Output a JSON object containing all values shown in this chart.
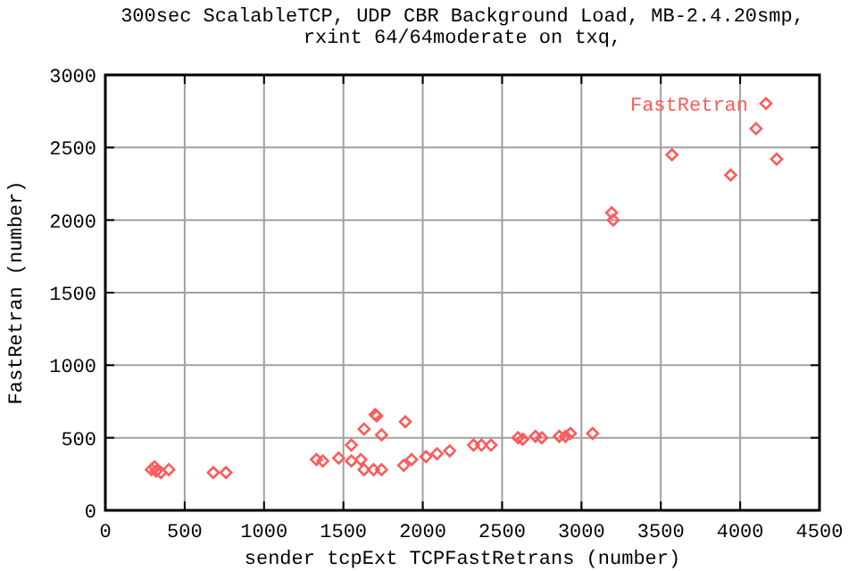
{
  "chart_data": {
    "type": "scatter",
    "title": "300sec ScalableTCP, UDP CBR Background Load, MB-2.4.20smp, rxint 64/64moderate on txq,",
    "xlabel": "sender tcpExt TCPFastRetrans (number)",
    "ylabel": "FastRetran (number)",
    "xlim": [
      0,
      4500
    ],
    "xticks": [
      0,
      500,
      1000,
      1500,
      2000,
      2500,
      3000,
      3500,
      4000,
      4500
    ],
    "ylim": [
      0,
      3000
    ],
    "yticks": [
      0,
      500,
      1000,
      1500,
      2000,
      2500,
      3000
    ],
    "grid": true,
    "legend": "top right",
    "marker": "diamond",
    "series": [
      {
        "name": "FastRetran",
        "color": "#ff5a5a",
        "x": [
          290,
          310,
          320,
          350,
          400,
          680,
          760,
          1330,
          1370,
          1470,
          1550,
          1550,
          1610,
          1630,
          1630,
          1700,
          1710,
          1740,
          1690,
          1740,
          1890,
          1880,
          1930,
          2020,
          2090,
          2170,
          2320,
          2370,
          2430,
          2600,
          2630,
          2710,
          2750,
          2860,
          2900,
          2930,
          3070,
          3190,
          3200,
          3570,
          3940,
          4100,
          4230
        ],
        "values": [
          280,
          300,
          270,
          260,
          280,
          260,
          260,
          350,
          340,
          360,
          450,
          340,
          350,
          560,
          280,
          660,
          650,
          520,
          280,
          280,
          610,
          310,
          350,
          370,
          390,
          410,
          450,
          450,
          450,
          500,
          490,
          510,
          500,
          510,
          510,
          530,
          530,
          2050,
          2000,
          2450,
          2310,
          2630,
          2420
        ]
      }
    ]
  }
}
